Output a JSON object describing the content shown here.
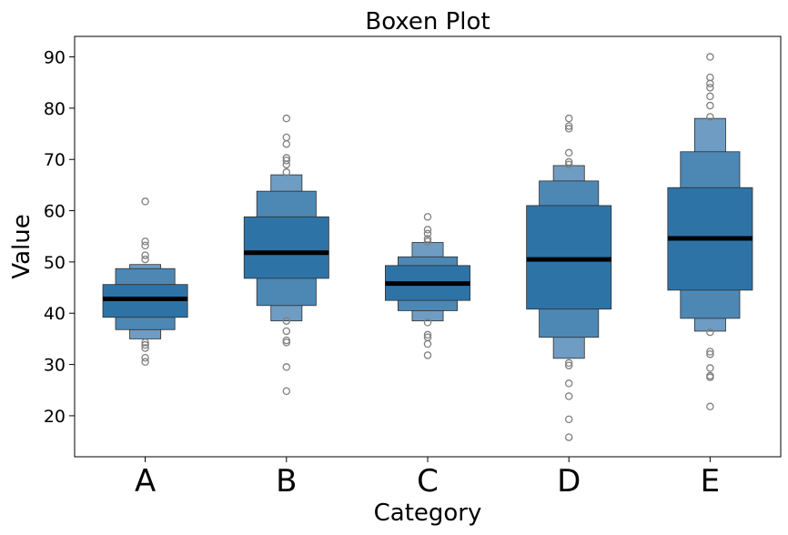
{
  "chart_data": {
    "type": "boxen",
    "title": "Boxen Plot",
    "xlabel": "Category",
    "ylabel": "Value",
    "categories": [
      "A",
      "B",
      "C",
      "D",
      "E"
    ],
    "ylim": [
      12,
      94
    ],
    "yticks": [
      20,
      30,
      40,
      50,
      60,
      70,
      80,
      90
    ],
    "grid": false,
    "colors": {
      "box": "#2e73a6",
      "box_light": "#4d88b5",
      "box_lighter": "#6f9cc2",
      "median": "#000000",
      "outlier": "#808080",
      "edge": "#2d2d2d"
    },
    "boxes": [
      {
        "category": "A",
        "median": 42.8,
        "levels": [
          [
            39.2,
            45.6
          ],
          [
            36.8,
            48.7
          ],
          [
            35.0,
            49.5
          ]
        ],
        "outliers": [
          61.8,
          54.0,
          53.2,
          51.3,
          50.5,
          34.3,
          33.8,
          33.2,
          31.3,
          30.5
        ]
      },
      {
        "category": "B",
        "median": 51.8,
        "levels": [
          [
            46.8,
            58.8
          ],
          [
            41.5,
            63.8
          ],
          [
            38.5,
            67.0
          ]
        ],
        "outliers": [
          78.0,
          74.3,
          73.0,
          70.3,
          69.8,
          69.0,
          67.5,
          38.5,
          36.5,
          34.7,
          34.3,
          29.5,
          24.8
        ]
      },
      {
        "category": "C",
        "median": 45.8,
        "levels": [
          [
            42.5,
            49.3
          ],
          [
            40.5,
            51.0
          ],
          [
            38.5,
            53.8
          ]
        ],
        "outliers": [
          58.8,
          56.3,
          55.5,
          54.5,
          54.0,
          38.2,
          35.8,
          35.3,
          34.0,
          31.8
        ]
      },
      {
        "category": "D",
        "median": 50.5,
        "levels": [
          [
            40.8,
            61.0
          ],
          [
            35.3,
            65.8
          ],
          [
            31.2,
            68.8
          ]
        ],
        "outliers": [
          78.0,
          76.5,
          76.0,
          71.3,
          69.5,
          69.0,
          30.3,
          29.8,
          26.3,
          23.8,
          19.3,
          15.8
        ]
      },
      {
        "category": "E",
        "median": 54.6,
        "levels": [
          [
            44.5,
            64.5
          ],
          [
            39.0,
            71.5
          ],
          [
            36.5,
            78.0
          ]
        ],
        "outliers": [
          90.0,
          86.0,
          84.8,
          84.0,
          82.3,
          80.5,
          78.3,
          36.3,
          32.5,
          32.0,
          29.3,
          27.8,
          27.5,
          21.8
        ]
      }
    ]
  }
}
